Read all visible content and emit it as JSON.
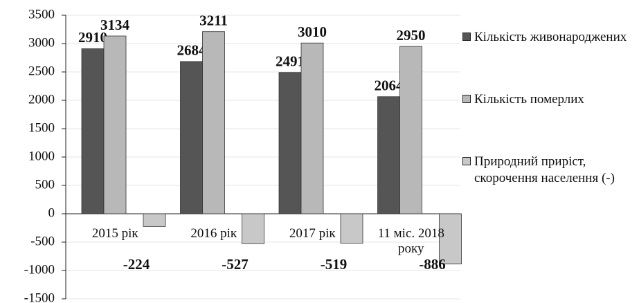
{
  "chart_data": {
    "type": "bar",
    "categories": [
      "2015 рік",
      "2016 рік",
      "2017 рік",
      "11 міс. 2018 року"
    ],
    "series": [
      {
        "name": "Кількість живонароджених",
        "color": "#555555",
        "values": [
          2910,
          2684,
          2491,
          2064
        ]
      },
      {
        "name": "Кількість померлих",
        "color": "#b8b8b8",
        "values": [
          3134,
          3211,
          3010,
          2950
        ]
      },
      {
        "name": "Природний приріст, скорочення населення (-)",
        "color": "#c8c8c8",
        "values": [
          -224,
          -527,
          -519,
          -886
        ]
      }
    ],
    "ylim": [
      -1500,
      3500
    ],
    "yticks": [
      -1500,
      -1000,
      -500,
      0,
      500,
      1000,
      1500,
      2000,
      2500,
      3000,
      3500
    ],
    "grid": true,
    "legend": "right"
  }
}
